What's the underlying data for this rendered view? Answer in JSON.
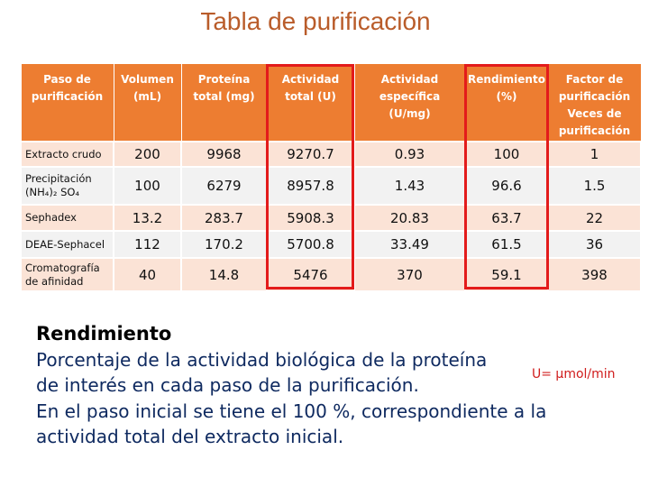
{
  "title": "Tabla de purificación",
  "table": {
    "header": [
      [
        "Paso de",
        "purificación"
      ],
      [
        "Volumen",
        "(mL)"
      ],
      [
        "Proteína",
        "total (mg)"
      ],
      [
        "Actividad",
        "total (U)"
      ],
      [
        "Actividad",
        "específica",
        "(U/mg)"
      ],
      [
        "Rendimiento",
        "(%)"
      ],
      [
        "Factor de",
        "purificación",
        "Veces de",
        "purificación"
      ]
    ],
    "rows": [
      [
        [
          "Extracto crudo"
        ],
        "200",
        "9968",
        "9270.7",
        "0.93",
        "100",
        "1"
      ],
      [
        [
          "Precipitación",
          "(NH₄)₂ SO₄"
        ],
        "100",
        "6279",
        "8957.8",
        "1.43",
        "96.6",
        "1.5"
      ],
      [
        [
          "Sephadex"
        ],
        "13.2",
        "283.7",
        "5908.3",
        "20.83",
        "63.7",
        "22"
      ],
      [
        [
          "DEAE-Sephacel"
        ],
        "112",
        "170.2",
        "5700.8",
        "33.49",
        "61.5",
        "36"
      ],
      [
        [
          "Cromatografía",
          "de afinidad"
        ],
        "40",
        "14.8",
        "5476",
        "370",
        "59.1",
        "398"
      ]
    ]
  },
  "text": {
    "heading": "Rendimiento",
    "lines": [
      "Porcentaje de la actividad biológica de la proteína",
      "de interés en cada paso de la purificación.",
      "En el paso inicial se tiene el 100 %, correspondiente a la",
      "actividad total del extracto inicial."
    ]
  },
  "note": "U= µmol/min"
}
